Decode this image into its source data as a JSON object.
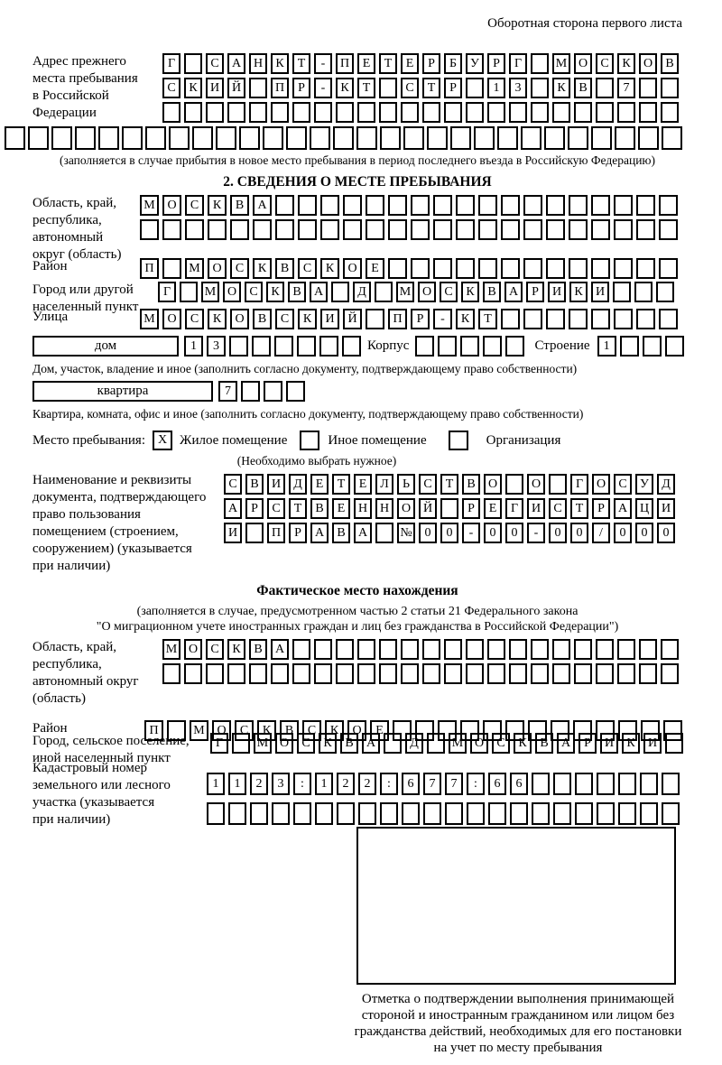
{
  "header": {
    "note": "Оборотная сторона первого листа"
  },
  "prev_address": {
    "label_lines": [
      "Адрес прежнего",
      "места пребывания",
      "в Российской",
      "Федерации"
    ],
    "rows": [
      [
        "Г",
        "",
        "С",
        "А",
        "Н",
        "К",
        "Т",
        "-",
        "П",
        "Е",
        "Т",
        "Е",
        "Р",
        "Б",
        "У",
        "Р",
        "Г",
        "",
        "М",
        "О",
        "С",
        "К",
        "О",
        "В"
      ],
      [
        "С",
        "К",
        "И",
        "Й",
        "",
        "П",
        "Р",
        "-",
        "К",
        "Т",
        "",
        "С",
        "Т",
        "Р",
        "",
        "1",
        "3",
        "",
        "К",
        "В",
        "",
        "7",
        "",
        ""
      ],
      24
    ],
    "overflow_row": 29,
    "note": "(заполняется в случае прибытия в новое место пребывания в период последнего въезда в Российскую Федерацию)"
  },
  "section2": {
    "title": "2. СВЕДЕНИЯ О МЕСТЕ ПРЕБЫВАНИЯ",
    "oblast": {
      "label_lines": [
        "Область, край,",
        "республика,",
        "автономный",
        "округ (область)"
      ],
      "rows": [
        [
          "М",
          "О",
          "С",
          "К",
          "В",
          "А",
          "",
          "",
          "",
          "",
          "",
          "",
          "",
          "",
          "",
          "",
          "",
          "",
          "",
          "",
          "",
          "",
          "",
          ""
        ],
        24
      ]
    },
    "raion": {
      "label": "Район",
      "row": [
        "П",
        "",
        "М",
        "О",
        "С",
        "К",
        "В",
        "С",
        "К",
        "О",
        "Е",
        "",
        "",
        "",
        "",
        "",
        "",
        "",
        "",
        "",
        "",
        "",
        "",
        ""
      ]
    },
    "gorod": {
      "label_lines": [
        "Город или другой",
        "населенный пункт"
      ],
      "row": [
        "Г",
        "",
        "М",
        "О",
        "С",
        "К",
        "В",
        "А",
        "",
        "Д",
        "",
        "М",
        "О",
        "С",
        "К",
        "В",
        "А",
        "Р",
        "И",
        "К",
        "И",
        "",
        "",
        ""
      ]
    },
    "ulitsa": {
      "label": "Улица",
      "row": [
        "М",
        "О",
        "С",
        "К",
        "О",
        "В",
        "С",
        "К",
        "И",
        "Й",
        "",
        "П",
        "Р",
        "-",
        "К",
        "Т",
        "",
        "",
        "",
        "",
        "",
        "",
        "",
        ""
      ]
    },
    "dom": {
      "box_label": "дом",
      "cells": [
        "1",
        "3",
        "",
        "",
        "",
        "",
        "",
        ""
      ],
      "korpus_label": "Корпус",
      "korpus_cells": 5,
      "stroenie_label": "Строение",
      "stroenie_cells": [
        "1",
        "",
        "",
        ""
      ]
    },
    "dom_note": "Дом, участок, владение и иное (заполнить согласно документу, подтверждающему право собственности)",
    "kvartira": {
      "box_label": "квартира",
      "cells": [
        "7",
        "",
        "",
        ""
      ]
    },
    "kvartira_note": "Квартира, комната, офис и иное (заполнить согласно документу, подтверждающему право собственности)",
    "mesto": {
      "label": "Место пребывания:",
      "options": [
        {
          "mark": "X",
          "label": "Жилое помещение"
        },
        {
          "mark": "",
          "label": "Иное помещение"
        },
        {
          "mark": "",
          "label": "Организация"
        }
      ],
      "note": "(Необходимо выбрать нужное)"
    },
    "doc": {
      "label_lines": [
        "Наименование и реквизиты",
        "документа, подтверждающего",
        "право пользования",
        "помещением (строением,",
        "сооружением) (указывается",
        "при наличии)"
      ],
      "rows": [
        [
          "С",
          "В",
          "И",
          "Д",
          "Е",
          "Т",
          "Е",
          "Л",
          "Ь",
          "С",
          "Т",
          "В",
          "О",
          "",
          "О",
          "",
          "Г",
          "О",
          "С",
          "У",
          "Д"
        ],
        [
          "А",
          "Р",
          "С",
          "Т",
          "В",
          "Е",
          "Н",
          "Н",
          "О",
          "Й",
          "",
          "Р",
          "Е",
          "Г",
          "И",
          "С",
          "Т",
          "Р",
          "А",
          "Ц",
          "И"
        ],
        [
          "И",
          "",
          "П",
          "Р",
          "А",
          "В",
          "А",
          "",
          "№",
          "0",
          "0",
          "-",
          "0",
          "0",
          "-",
          "0",
          "0",
          "/",
          "0",
          "0",
          "0"
        ]
      ]
    }
  },
  "factual": {
    "title": "Фактическое место нахождения",
    "note_lines": [
      "(заполняется в случае, предусмотренном частью 2 статьи 21 Федерального закона",
      "\"О миграционном учете иностранных граждан и лиц без гражданства в Российской Федерации\")"
    ],
    "oblast": {
      "label_lines": [
        "Область, край,",
        "республика,",
        "автономный округ",
        "(область)"
      ],
      "rows": [
        [
          "М",
          "О",
          "С",
          "К",
          "В",
          "А",
          "",
          "",
          "",
          "",
          "",
          "",
          "",
          "",
          "",
          "",
          "",
          "",
          "",
          "",
          "",
          "",
          "",
          ""
        ],
        24
      ]
    },
    "raion": {
      "label": "Район",
      "row": [
        "П",
        "",
        "М",
        "О",
        "С",
        "К",
        "В",
        "С",
        "К",
        "О",
        "Е",
        "",
        "",
        "",
        "",
        "",
        "",
        "",
        "",
        "",
        "",
        "",
        "",
        ""
      ]
    },
    "gorod": {
      "label_lines": [
        "Город, сельское поселение,",
        "иной населенный пункт"
      ],
      "row": [
        "Г",
        "",
        "М",
        "О",
        "С",
        "К",
        "В",
        "А",
        "",
        "Д",
        "",
        "М",
        "О",
        "С",
        "К",
        "В",
        "А",
        "Р",
        "И",
        "К",
        "И",
        ""
      ]
    },
    "kadastr": {
      "label_lines": [
        "Кадастровый номер",
        "земельного или лесного",
        "участка (указывается",
        "при наличии)"
      ],
      "rows": [
        [
          "1",
          "1",
          "2",
          "3",
          ":",
          "1",
          "2",
          "2",
          ":",
          "6",
          "7",
          "7",
          ":",
          "6",
          "6",
          "",
          "",
          "",
          "",
          "",
          "",
          ""
        ],
        22
      ]
    },
    "stamp_caption_lines": [
      "Отметка о подтверждении выполнения принимающей",
      "стороной и иностранным гражданином или лицом без",
      "гражданства действий, необходимых для его постановки",
      "на учет по месту пребывания"
    ]
  }
}
